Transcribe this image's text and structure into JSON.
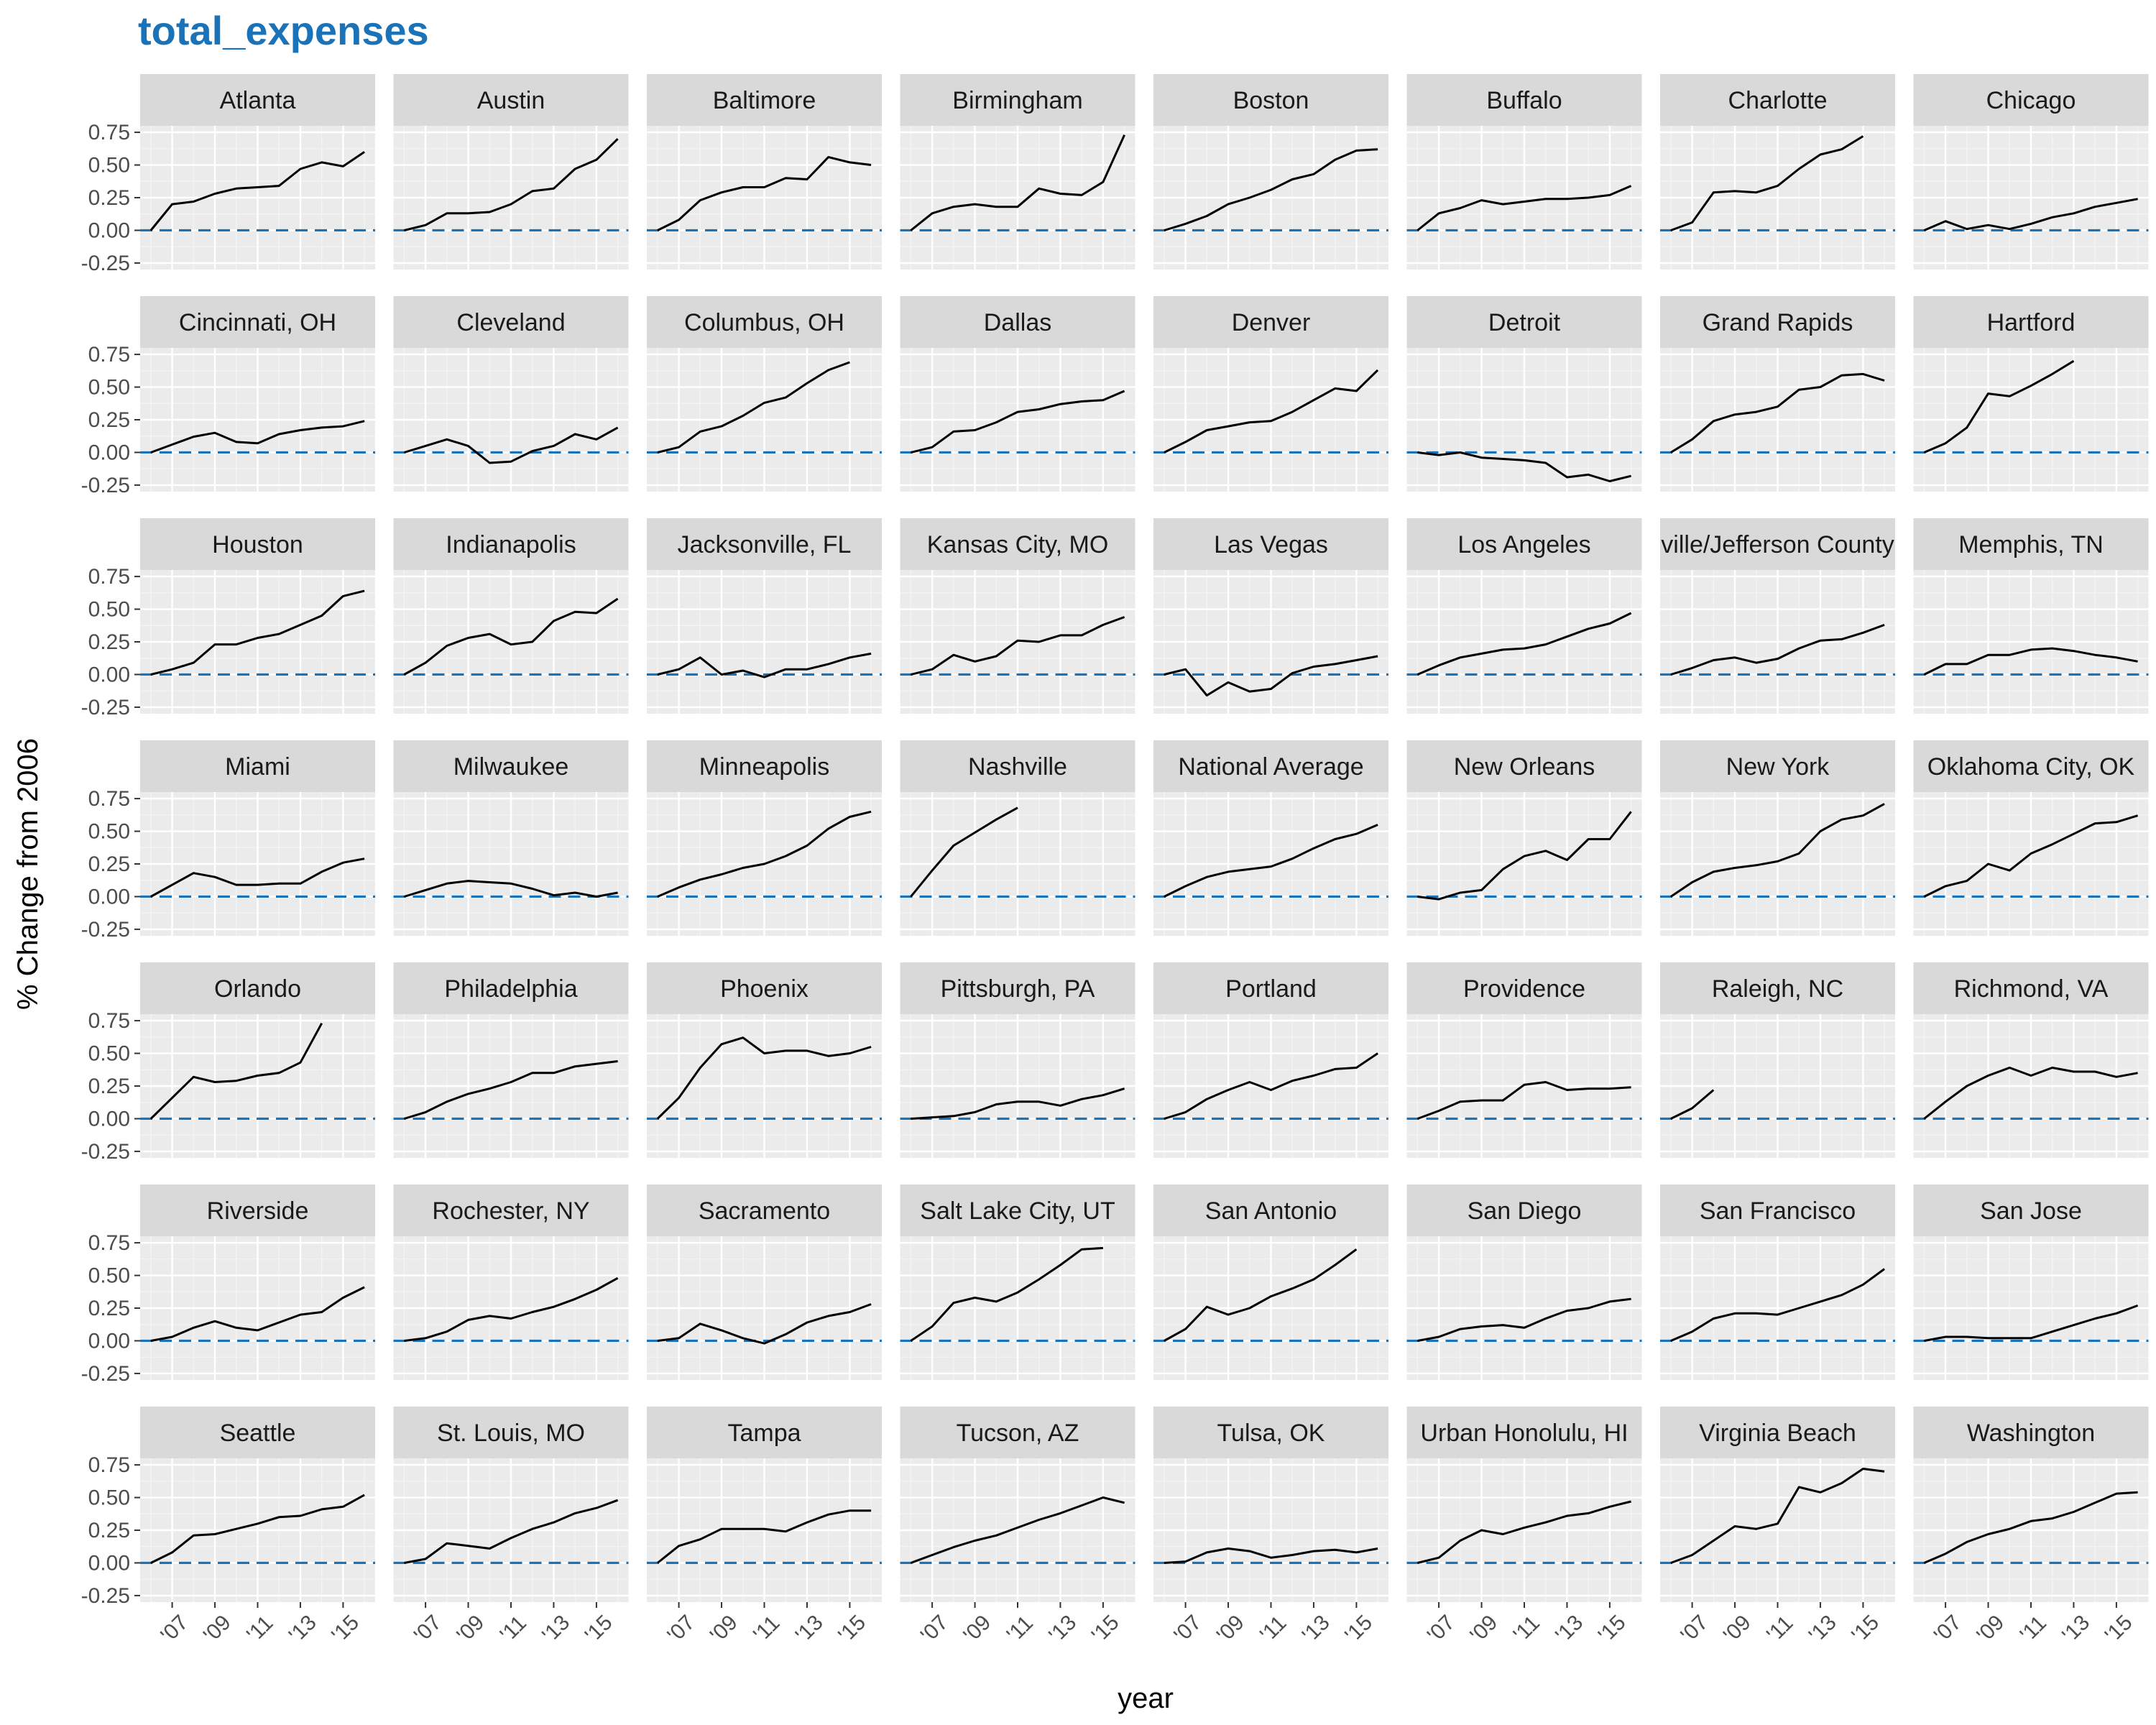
{
  "title": "total_expenses",
  "chart_data": {
    "type": "line",
    "facet": "small-multiples",
    "title": "total_expenses",
    "xlabel": "year",
    "ylabel": "% Change from 2006",
    "x": [
      2006,
      2007,
      2008,
      2009,
      2010,
      2011,
      2012,
      2013,
      2014,
      2015,
      2016
    ],
    "x_ticks": [
      2007,
      2009,
      2011,
      2013,
      2015
    ],
    "x_tick_labels": [
      "'07",
      "'09",
      "'11",
      "'13",
      "'15"
    ],
    "xlim": [
      2005.5,
      2016.5
    ],
    "ylim": [
      -0.3,
      0.8
    ],
    "y_ticks": [
      -0.25,
      0,
      0.25,
      0.5,
      0.75
    ],
    "y_tick_labels": [
      "-0.25",
      "0.00",
      "0.25",
      "0.50",
      "0.75"
    ],
    "reference_line": {
      "y": 0,
      "style": "dashed",
      "color": "#1a73b8"
    },
    "grid": true,
    "line_color": "#000000",
    "panel_background": "#ebebeb",
    "strip_background": "#d9d9d9",
    "ncol": 8,
    "panels": [
      {
        "name": "Atlanta",
        "values": [
          0,
          0.2,
          0.22,
          0.28,
          0.32,
          0.33,
          0.34,
          0.47,
          0.52,
          0.49,
          0.6
        ]
      },
      {
        "name": "Austin",
        "values": [
          0,
          0.04,
          0.13,
          0.13,
          0.14,
          0.2,
          0.3,
          0.32,
          0.47,
          0.54,
          0.7
        ]
      },
      {
        "name": "Baltimore",
        "values": [
          0,
          0.08,
          0.23,
          0.29,
          0.33,
          0.33,
          0.4,
          0.39,
          0.56,
          0.52,
          0.5
        ]
      },
      {
        "name": "Birmingham",
        "values": [
          0,
          0.13,
          0.18,
          0.2,
          0.18,
          0.18,
          0.32,
          0.28,
          0.27,
          0.37,
          0.73
        ]
      },
      {
        "name": "Boston",
        "values": [
          0,
          0.05,
          0.11,
          0.2,
          0.25,
          0.31,
          0.39,
          0.43,
          0.54,
          0.61,
          0.62
        ]
      },
      {
        "name": "Buffalo",
        "values": [
          0,
          0.13,
          0.17,
          0.23,
          0.2,
          0.22,
          0.24,
          0.24,
          0.25,
          0.27,
          0.34
        ]
      },
      {
        "name": "Charlotte",
        "values": [
          0,
          0.06,
          0.29,
          0.3,
          0.29,
          0.34,
          0.47,
          0.58,
          0.62,
          0.72,
          null
        ]
      },
      {
        "name": "Chicago",
        "values": [
          0,
          0.07,
          0.01,
          0.04,
          0.01,
          0.05,
          0.1,
          0.13,
          0.18,
          0.21,
          0.24
        ]
      },
      {
        "name": "Cincinnati, OH",
        "values": [
          0,
          0.06,
          0.12,
          0.15,
          0.08,
          0.07,
          0.14,
          0.17,
          0.19,
          0.2,
          0.24
        ]
      },
      {
        "name": "Cleveland",
        "values": [
          0,
          0.05,
          0.1,
          0.05,
          -0.08,
          -0.07,
          0.01,
          0.05,
          0.14,
          0.1,
          0.19
        ]
      },
      {
        "name": "Columbus, OH",
        "values": [
          0,
          0.04,
          0.16,
          0.2,
          0.28,
          0.38,
          0.42,
          0.53,
          0.63,
          0.69,
          null
        ]
      },
      {
        "name": "Dallas",
        "values": [
          0,
          0.04,
          0.16,
          0.17,
          0.23,
          0.31,
          0.33,
          0.37,
          0.39,
          0.4,
          0.47
        ]
      },
      {
        "name": "Denver",
        "values": [
          0,
          0.08,
          0.17,
          0.2,
          0.23,
          0.24,
          0.31,
          0.4,
          0.49,
          0.47,
          0.63
        ]
      },
      {
        "name": "Detroit",
        "values": [
          0,
          -0.02,
          0,
          -0.04,
          -0.05,
          -0.06,
          -0.08,
          -0.19,
          -0.17,
          -0.22,
          -0.18
        ]
      },
      {
        "name": "Grand Rapids",
        "values": [
          0,
          0.1,
          0.24,
          0.29,
          0.31,
          0.35,
          0.48,
          0.5,
          0.59,
          0.6,
          0.55
        ]
      },
      {
        "name": "Hartford",
        "values": [
          0,
          0.07,
          0.19,
          0.45,
          0.43,
          0.51,
          0.6,
          0.7,
          null,
          null,
          null
        ]
      },
      {
        "name": "Houston",
        "values": [
          0,
          0.04,
          0.09,
          0.23,
          0.23,
          0.28,
          0.31,
          0.38,
          0.45,
          0.6,
          0.64
        ]
      },
      {
        "name": "Indianapolis",
        "values": [
          0,
          0.09,
          0.22,
          0.28,
          0.31,
          0.23,
          0.25,
          0.41,
          0.48,
          0.47,
          0.58
        ]
      },
      {
        "name": "Jacksonville, FL",
        "values": [
          0,
          0.04,
          0.13,
          0,
          0.03,
          -0.02,
          0.04,
          0.04,
          0.08,
          0.13,
          0.16
        ]
      },
      {
        "name": "Kansas City, MO",
        "values": [
          0,
          0.04,
          0.15,
          0.1,
          0.14,
          0.26,
          0.25,
          0.3,
          0.3,
          0.38,
          0.44
        ]
      },
      {
        "name": "Las Vegas",
        "values": [
          0,
          0.04,
          -0.16,
          -0.06,
          -0.13,
          -0.11,
          0.01,
          0.06,
          0.08,
          0.11,
          0.14
        ]
      },
      {
        "name": "Los Angeles",
        "values": [
          0,
          0.07,
          0.13,
          0.16,
          0.19,
          0.2,
          0.23,
          0.29,
          0.35,
          0.39,
          0.47
        ]
      },
      {
        "name": "Louisville/Jefferson County",
        "display_label": "ville/Jefferson County",
        "values": [
          0,
          0.05,
          0.11,
          0.13,
          0.09,
          0.12,
          0.2,
          0.26,
          0.27,
          0.32,
          0.38
        ]
      },
      {
        "name": "Memphis, TN",
        "values": [
          0,
          0.08,
          0.08,
          0.15,
          0.15,
          0.19,
          0.2,
          0.18,
          0.15,
          0.13,
          0.1
        ]
      },
      {
        "name": "Miami",
        "values": [
          0,
          0.09,
          0.18,
          0.15,
          0.09,
          0.09,
          0.1,
          0.1,
          0.19,
          0.26,
          0.29
        ]
      },
      {
        "name": "Milwaukee",
        "values": [
          0,
          0.05,
          0.1,
          0.12,
          0.11,
          0.1,
          0.06,
          0.01,
          0.03,
          0,
          0.03
        ]
      },
      {
        "name": "Minneapolis",
        "values": [
          0,
          0.07,
          0.13,
          0.17,
          0.22,
          0.25,
          0.31,
          0.39,
          0.52,
          0.61,
          0.65
        ]
      },
      {
        "name": "Nashville",
        "values": [
          0,
          0.2,
          0.39,
          0.49,
          0.59,
          0.68,
          null,
          null,
          null,
          null,
          null
        ]
      },
      {
        "name": "National Average",
        "values": [
          0,
          0.08,
          0.15,
          0.19,
          0.21,
          0.23,
          0.29,
          0.37,
          0.44,
          0.48,
          0.55
        ]
      },
      {
        "name": "New Orleans",
        "values": [
          0,
          -0.02,
          0.03,
          0.05,
          0.21,
          0.31,
          0.35,
          0.28,
          0.44,
          0.44,
          0.65
        ]
      },
      {
        "name": "New York",
        "values": [
          0,
          0.11,
          0.19,
          0.22,
          0.24,
          0.27,
          0.33,
          0.5,
          0.59,
          0.62,
          0.71
        ]
      },
      {
        "name": "Oklahoma City, OK",
        "values": [
          0,
          0.08,
          0.12,
          0.25,
          0.2,
          0.33,
          0.4,
          0.48,
          0.56,
          0.57,
          0.62
        ]
      },
      {
        "name": "Orlando",
        "values": [
          0,
          0.16,
          0.32,
          0.28,
          0.29,
          0.33,
          0.35,
          0.43,
          0.73,
          null,
          null
        ]
      },
      {
        "name": "Philadelphia",
        "values": [
          0,
          0.05,
          0.13,
          0.19,
          0.23,
          0.28,
          0.35,
          0.35,
          0.4,
          0.42,
          0.44
        ]
      },
      {
        "name": "Phoenix",
        "values": [
          0,
          0.16,
          0.39,
          0.57,
          0.62,
          0.5,
          0.52,
          0.52,
          0.48,
          0.5,
          0.55
        ]
      },
      {
        "name": "Pittsburgh, PA",
        "values": [
          0,
          0.01,
          0.02,
          0.05,
          0.11,
          0.13,
          0.13,
          0.1,
          0.15,
          0.18,
          0.23
        ]
      },
      {
        "name": "Portland",
        "values": [
          0,
          0.05,
          0.15,
          0.22,
          0.28,
          0.22,
          0.29,
          0.33,
          0.38,
          0.39,
          0.5
        ]
      },
      {
        "name": "Providence",
        "values": [
          0,
          0.06,
          0.13,
          0.14,
          0.14,
          0.26,
          0.28,
          0.22,
          0.23,
          0.23,
          0.24
        ]
      },
      {
        "name": "Raleigh, NC",
        "values": [
          0,
          0.08,
          0.22,
          null,
          null,
          null,
          null,
          null,
          null,
          null,
          null
        ]
      },
      {
        "name": "Richmond, VA",
        "values": [
          0,
          0.13,
          0.25,
          0.33,
          0.39,
          0.33,
          0.39,
          0.36,
          0.36,
          0.32,
          0.35
        ]
      },
      {
        "name": "Riverside",
        "values": [
          0,
          0.03,
          0.1,
          0.15,
          0.1,
          0.08,
          0.14,
          0.2,
          0.22,
          0.33,
          0.41
        ]
      },
      {
        "name": "Rochester, NY",
        "values": [
          0,
          0.02,
          0.07,
          0.16,
          0.19,
          0.17,
          0.22,
          0.26,
          0.32,
          0.39,
          0.48
        ]
      },
      {
        "name": "Sacramento",
        "values": [
          0,
          0.02,
          0.13,
          0.08,
          0.02,
          -0.02,
          0.05,
          0.14,
          0.19,
          0.22,
          0.28
        ]
      },
      {
        "name": "Salt Lake City, UT",
        "values": [
          0,
          0.11,
          0.29,
          0.33,
          0.3,
          0.37,
          0.47,
          0.58,
          0.7,
          0.71,
          null
        ]
      },
      {
        "name": "San Antonio",
        "values": [
          0,
          0.09,
          0.26,
          0.2,
          0.25,
          0.34,
          0.4,
          0.47,
          0.58,
          0.7,
          null
        ]
      },
      {
        "name": "San Diego",
        "values": [
          0,
          0.03,
          0.09,
          0.11,
          0.12,
          0.1,
          0.17,
          0.23,
          0.25,
          0.3,
          0.32
        ]
      },
      {
        "name": "San Francisco",
        "values": [
          0,
          0.07,
          0.17,
          0.21,
          0.21,
          0.2,
          0.25,
          0.3,
          0.35,
          0.43,
          0.55
        ]
      },
      {
        "name": "San Jose",
        "values": [
          0,
          0.03,
          0.03,
          0.02,
          0.02,
          0.02,
          0.07,
          0.12,
          0.17,
          0.21,
          0.27
        ]
      },
      {
        "name": "Seattle",
        "values": [
          0,
          0.08,
          0.21,
          0.22,
          0.26,
          0.3,
          0.35,
          0.36,
          0.41,
          0.43,
          0.52
        ]
      },
      {
        "name": "St. Louis, MO",
        "values": [
          0,
          0.03,
          0.15,
          0.13,
          0.11,
          0.19,
          0.26,
          0.31,
          0.38,
          0.42,
          0.48
        ]
      },
      {
        "name": "Tampa",
        "values": [
          0,
          0.13,
          0.18,
          0.26,
          0.26,
          0.26,
          0.24,
          0.31,
          0.37,
          0.4,
          0.4
        ]
      },
      {
        "name": "Tucson, AZ",
        "values": [
          0,
          0.06,
          0.12,
          0.17,
          0.21,
          0.27,
          0.33,
          0.38,
          0.44,
          0.5,
          0.46
        ]
      },
      {
        "name": "Tulsa, OK",
        "values": [
          0,
          0.01,
          0.08,
          0.11,
          0.09,
          0.04,
          0.06,
          0.09,
          0.1,
          0.08,
          0.11
        ]
      },
      {
        "name": "Urban Honolulu, HI",
        "values": [
          0,
          0.04,
          0.17,
          0.25,
          0.22,
          0.27,
          0.31,
          0.36,
          0.38,
          0.43,
          0.47
        ]
      },
      {
        "name": "Virginia Beach",
        "values": [
          0,
          0.06,
          0.17,
          0.28,
          0.26,
          0.3,
          0.58,
          0.54,
          0.61,
          0.72,
          0.7
        ]
      },
      {
        "name": "Washington",
        "values": [
          0,
          0.07,
          0.16,
          0.22,
          0.26,
          0.32,
          0.34,
          0.39,
          0.46,
          0.53,
          0.54
        ]
      }
    ]
  }
}
